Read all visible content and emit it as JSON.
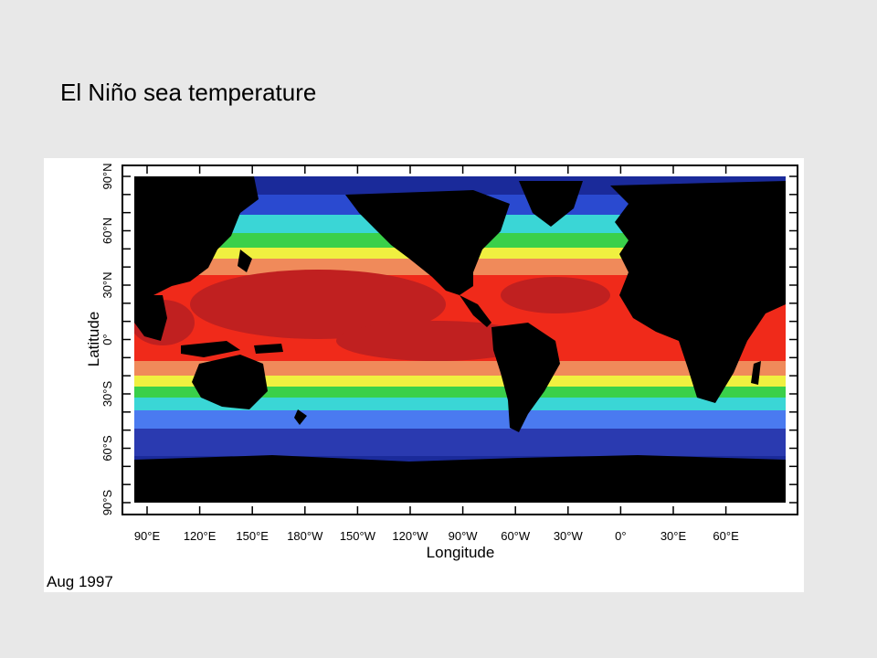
{
  "slide": {
    "title": "El Niño sea temperature"
  },
  "map": {
    "x_axis": {
      "label": "Longitude",
      "ticks": [
        "90°E",
        "120°E",
        "150°E",
        "180°W",
        "150°W",
        "120°W",
        "90°W",
        "60°W",
        "30°W",
        "0°",
        "30°E",
        "60°E"
      ]
    },
    "y_axis": {
      "label": "Latitude",
      "ticks": [
        "90°N",
        "60°N",
        "30°N",
        "0°",
        "30°S",
        "60°S",
        "90°S"
      ]
    },
    "date": "Aug 1997",
    "colors": {
      "ocean_cold": "#1a2a9a",
      "ocean_cool": "#4a7af0",
      "ocean_cyan": "#3ad6d6",
      "ocean_green": "#3ad04a",
      "ocean_yellow": "#f0f040",
      "ocean_orange": "#f08a5a",
      "ocean_red": "#f02a1a",
      "ocean_hot": "#b02020",
      "land": "#000000"
    }
  }
}
